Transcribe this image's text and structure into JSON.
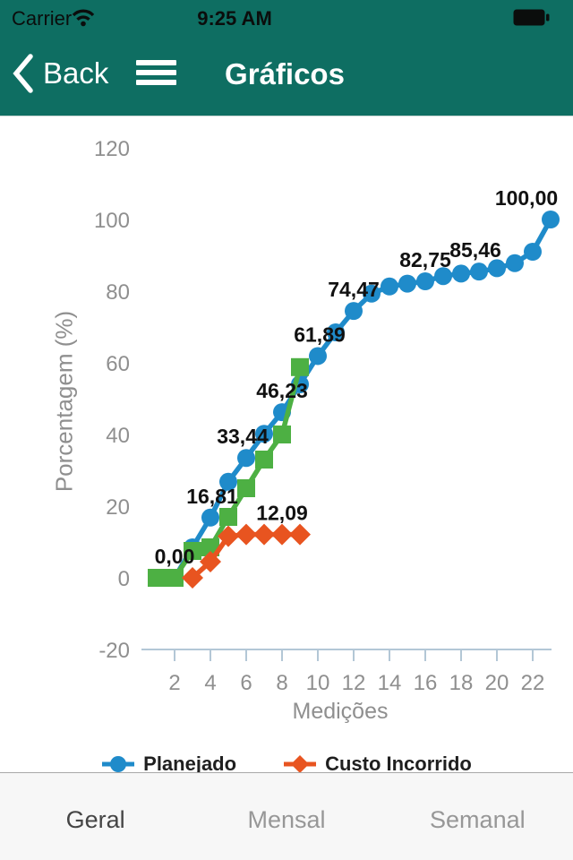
{
  "status_bar": {
    "carrier": "Carrier",
    "time": "9:25 AM"
  },
  "nav_bar": {
    "back_label": "Back",
    "title": "Gráficos"
  },
  "chart_data": {
    "type": "line",
    "xlabel": "Medições",
    "ylabel": "Porcentagem (%)",
    "x_ticks": [
      2,
      4,
      6,
      8,
      10,
      12,
      14,
      16,
      18,
      20,
      22
    ],
    "y_ticks": [
      -20,
      0,
      20,
      40,
      60,
      80,
      100,
      120
    ],
    "xlim": [
      1,
      23.5
    ],
    "ylim": [
      -20,
      120
    ],
    "grid": false,
    "legend_position": "bottom",
    "decimal_separator": ",",
    "series": [
      {
        "name": "Planejado",
        "color": "#1f8bca",
        "marker": "circle",
        "in_legend": true,
        "points": [
          [
            2,
            0
          ],
          [
            3,
            8.5
          ],
          [
            4,
            16.81
          ],
          [
            5,
            26.8
          ],
          [
            6,
            33.44
          ],
          [
            7,
            40.2
          ],
          [
            8,
            46.23
          ],
          [
            9,
            54
          ],
          [
            10,
            61.89
          ],
          [
            11,
            68.5
          ],
          [
            12,
            74.47
          ],
          [
            13,
            79.3
          ],
          [
            14,
            81.3
          ],
          [
            15,
            82.1
          ],
          [
            16,
            82.75
          ],
          [
            17,
            84.2
          ],
          [
            18,
            84.9
          ],
          [
            19,
            85.46
          ],
          [
            20,
            86.4
          ],
          [
            21,
            87.8
          ],
          [
            22,
            91
          ],
          [
            23,
            100
          ]
        ],
        "point_labels": [
          {
            "x": 2,
            "text": "0,00",
            "dx": 0
          },
          {
            "x": 4,
            "text": "16,81",
            "dx": 2
          },
          {
            "x": 6,
            "text": "33,44",
            "dx": -4
          },
          {
            "x": 8,
            "text": "46,23",
            "dx": 0
          },
          {
            "x": 10,
            "text": "61,89",
            "dx": 2
          },
          {
            "x": 12,
            "text": "74,47",
            "dx": 0
          },
          {
            "x": 16,
            "text": "82,75",
            "dx": 0
          },
          {
            "x": 19,
            "text": "85,46",
            "dx": -4
          },
          {
            "x": 23,
            "text": "100,00",
            "dx": -27
          }
        ]
      },
      {
        "name": "",
        "color": "#4db043",
        "marker": "square",
        "in_legend": false,
        "points": [
          [
            1,
            0
          ],
          [
            2,
            0
          ],
          [
            3,
            7.5
          ],
          [
            4,
            8.5
          ],
          [
            5,
            17
          ],
          [
            6,
            25
          ],
          [
            7,
            33
          ],
          [
            8,
            40
          ],
          [
            9,
            58.8
          ]
        ],
        "point_labels": []
      },
      {
        "name": "Custo Incorrido",
        "color": "#e85420",
        "marker": "diamond",
        "in_legend": true,
        "points": [
          [
            3,
            0
          ],
          [
            4,
            4.5
          ],
          [
            5,
            11.6
          ],
          [
            6,
            12.09
          ],
          [
            7,
            12.09
          ],
          [
            8,
            12.09
          ],
          [
            9,
            12.09
          ]
        ],
        "point_labels": [
          {
            "x": 8,
            "text": "12,09",
            "dx": 0
          }
        ]
      }
    ]
  },
  "tab_bar": {
    "tabs": [
      {
        "label": "Geral",
        "active": true
      },
      {
        "label": "Mensal",
        "active": false
      },
      {
        "label": "Semanal",
        "active": false
      }
    ]
  },
  "colors": {
    "header_teal": "#0e6e62",
    "status_text": "#0b0d0c",
    "nav_text": "#ffffff",
    "axis_text": "#8f8f8f",
    "axis_line": "#b3c7d6",
    "data_label": "#111111",
    "legend_text": "#1f1f1f",
    "tabbar_bg": "#f7f7f7",
    "tab_active": "#454545",
    "tab_inactive": "#979797"
  }
}
